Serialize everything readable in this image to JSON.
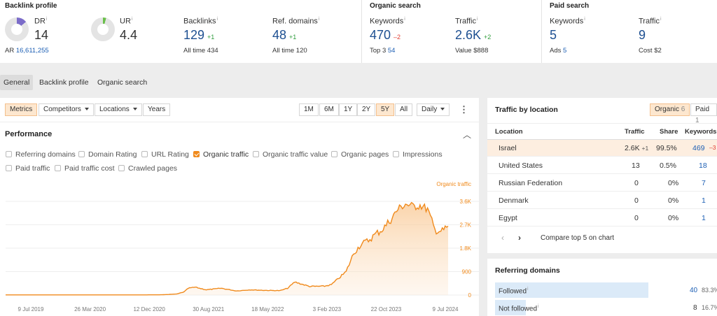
{
  "header": {
    "backlink_profile": {
      "title": "Backlink profile",
      "dr": {
        "label": "DR",
        "value": "14",
        "fill_pct": 14
      },
      "ur": {
        "label": "UR",
        "value": "4.4",
        "fill_pct": 4.4
      },
      "ar": {
        "label": "AR",
        "value": "16,611,255"
      },
      "backlinks": {
        "label": "Backlinks",
        "value": "129",
        "change": "+1",
        "sub_label": "All time",
        "sub_value": "434"
      },
      "ref_domains": {
        "label": "Ref. domains",
        "value": "48",
        "change": "+1",
        "sub_label": "All time",
        "sub_value": "120"
      }
    },
    "organic_search": {
      "title": "Organic search",
      "keywords": {
        "label": "Keywords",
        "value": "470",
        "change": "–2",
        "sub_label": "Top 3",
        "sub_value": "54"
      },
      "traffic": {
        "label": "Traffic",
        "value": "2.6K",
        "change": "+2",
        "sub_label": "Value",
        "sub_value": "$888"
      }
    },
    "paid_search": {
      "title": "Paid search",
      "keywords": {
        "label": "Keywords",
        "value": "5",
        "sub_label": "Ads",
        "sub_value": "5"
      },
      "traffic": {
        "label": "Traffic",
        "value": "9",
        "sub_label": "Cost",
        "sub_value": "$2"
      }
    },
    "info_mark": "i"
  },
  "tabs": [
    "General",
    "Backlink profile",
    "Organic search"
  ],
  "toolbar": {
    "metrics": "Metrics",
    "competitors": "Competitors",
    "locations": "Locations",
    "years": "Years",
    "ranges": [
      "1M",
      "6M",
      "1Y",
      "2Y",
      "5Y",
      "All"
    ],
    "active_range": "5Y",
    "interval": "Daily",
    "more": "⋮"
  },
  "performance": {
    "title": "Performance",
    "collapse": "︿",
    "checkboxes": [
      {
        "label": "Referring domains",
        "checked": false
      },
      {
        "label": "Domain Rating",
        "checked": false
      },
      {
        "label": "URL Rating",
        "checked": false
      },
      {
        "label": "Organic traffic",
        "checked": true
      },
      {
        "label": "Organic traffic value",
        "checked": false
      },
      {
        "label": "Organic pages",
        "checked": false
      },
      {
        "label": "Impressions",
        "checked": false
      },
      {
        "label": "Paid traffic",
        "checked": false
      },
      {
        "label": "Paid traffic cost",
        "checked": false
      },
      {
        "label": "Crawled pages",
        "checked": false
      }
    ]
  },
  "chart_data": {
    "type": "area",
    "series_name": "Organic traffic",
    "color": "#f08a1c",
    "x_labels": [
      "9 Jul 2019",
      "26 Mar 2020",
      "12 Dec 2020",
      "30 Aug 2021",
      "18 May 2022",
      "3 Feb 2023",
      "22 Oct 2023",
      "9 Jul 2024"
    ],
    "y_ticks": [
      "3.6K",
      "2.7K",
      "1.8K",
      "900",
      "0"
    ],
    "y_tick_values": [
      3600,
      2700,
      1800,
      900,
      0
    ],
    "ylim": [
      0,
      3600
    ],
    "x": [
      "2019-07-09",
      "2019-10",
      "2020-01",
      "2020-04",
      "2020-07",
      "2020-10",
      "2021-01",
      "2021-04",
      "2021-06",
      "2021-07",
      "2021-08-01",
      "2021-08-30",
      "2021-10",
      "2021-12",
      "2022-02",
      "2022-04",
      "2022-06",
      "2022-08",
      "2022-09",
      "2022-10",
      "2022-12",
      "2023-02",
      "2023-03",
      "2023-04",
      "2023-05",
      "2023-06",
      "2023-07",
      "2023-08",
      "2023-09",
      "2023-10",
      "2023-11",
      "2023-12",
      "2024-01",
      "2024-02",
      "2024-03",
      "2024-04",
      "2024-05",
      "2024-06",
      "2024-07-09"
    ],
    "values": [
      5,
      5,
      5,
      5,
      5,
      5,
      5,
      10,
      40,
      120,
      260,
      300,
      200,
      260,
      160,
      200,
      180,
      170,
      260,
      500,
      330,
      340,
      400,
      650,
      900,
      1600,
      1950,
      2100,
      2350,
      2550,
      2900,
      3300,
      3500,
      3400,
      3450,
      3300,
      2500,
      2450,
      2650
    ]
  },
  "traffic_by_location": {
    "title": "Traffic by location",
    "toggle": [
      {
        "label": "Organic",
        "count": "6",
        "active": true
      },
      {
        "label": "Paid",
        "count": "1",
        "active": false
      }
    ],
    "columns": [
      "Location",
      "Traffic",
      "Share",
      "Keywords"
    ],
    "rows": [
      {
        "location": "Israel",
        "traffic": "2.6K",
        "change": "+1",
        "share": "99.5%",
        "keywords": "469",
        "kw_change": "–3"
      },
      {
        "location": "United States",
        "traffic": "13",
        "change": "",
        "share": "0.5%",
        "keywords": "18",
        "kw_change": ""
      },
      {
        "location": "Russian Federation",
        "traffic": "0",
        "change": "",
        "share": "0%",
        "keywords": "7",
        "kw_change": ""
      },
      {
        "location": "Denmark",
        "traffic": "0",
        "change": "",
        "share": "0%",
        "keywords": "1",
        "kw_change": ""
      },
      {
        "location": "Egypt",
        "traffic": "0",
        "change": "",
        "share": "0%",
        "keywords": "1",
        "kw_change": ""
      }
    ],
    "compare_label": "Compare top 5 on chart"
  },
  "referring_domains": {
    "title": "Referring domains",
    "rows": [
      {
        "label": "Followed",
        "value": "40",
        "pct": "83.3%",
        "share": 83.3
      },
      {
        "label": "Not followed",
        "value": "8",
        "pct": "16.7%",
        "share": 16.7
      }
    ]
  }
}
